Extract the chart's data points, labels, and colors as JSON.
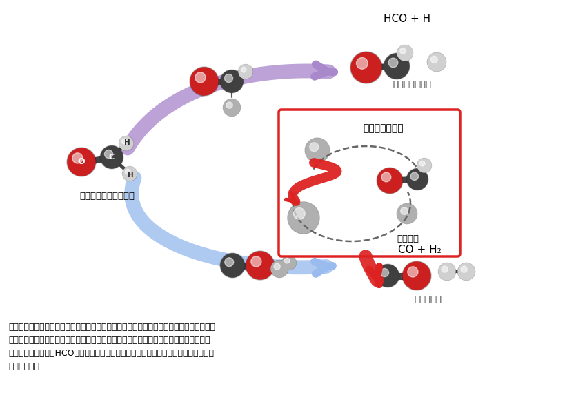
{
  "bg_color": "#ffffff",
  "fig_width": 8.2,
  "fig_height": 6.02,
  "dpi": 100,
  "caption_line1": "図１　ホルムアルデヒド分子の解離反応の模式図。分子性解離とラジカル性解離がエネル",
  "caption_line2": "　　ギー障壁の最も低いルートを経由して速やかに進行するのに対し、ローミング過程",
  "caption_line3": "　　では水素原子がHCOの周りを自由に歩き回る余分な運動をしながら、反応が進行",
  "caption_line4": "　　します。",
  "label_hco_h": "HCO + H",
  "label_radical": "ラジカル性解離",
  "label_co_h2": "CO + H₂",
  "label_molecular": "分子性解離",
  "label_formaldehyde": "ホルムアルデヒド分子",
  "label_roaming": "ローミング過程",
  "label_hydrogen": "水素原子",
  "atom_red": "#cc2020",
  "atom_dark": "#404040",
  "atom_gray": "#b0b0b0",
  "atom_light": "#d0d0d0",
  "arrow_purple": "#aa88cc",
  "arrow_blue": "#99bbee",
  "arrow_red": "#dd2222",
  "box_red": "#dd2222",
  "dashed_gray": "#666666"
}
